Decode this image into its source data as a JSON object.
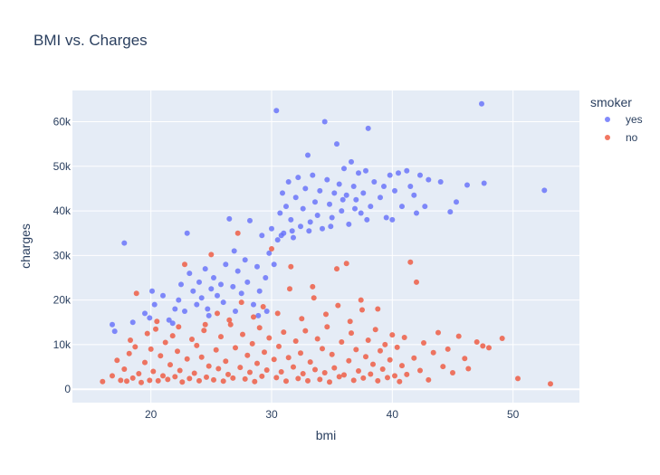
{
  "chart_data": {
    "type": "scatter",
    "title": "BMI vs. Charges",
    "xlabel": "bmi",
    "ylabel": "charges",
    "xlim": [
      13.5,
      55.5
    ],
    "ylim": [
      -3000,
      67000
    ],
    "x_ticks": [
      20,
      30,
      40,
      50
    ],
    "x_tick_labels": [
      "20",
      "30",
      "40",
      "50"
    ],
    "y_ticks": [
      0,
      10000,
      20000,
      30000,
      40000,
      50000,
      60000
    ],
    "y_tick_labels": [
      "0",
      "10k",
      "20k",
      "30k",
      "40k",
      "50k",
      "60k"
    ],
    "grid": true,
    "legend": {
      "title": "smoker",
      "placement": "top-right outside"
    },
    "series": [
      {
        "name": "yes",
        "color": "#636efa",
        "points": [
          [
            17.8,
            32800
          ],
          [
            16.8,
            14500
          ],
          [
            17.0,
            13000
          ],
          [
            18.5,
            15000
          ],
          [
            19.5,
            17000
          ],
          [
            19.9,
            16000
          ],
          [
            20.1,
            22000
          ],
          [
            20.3,
            19000
          ],
          [
            21.0,
            21000
          ],
          [
            21.5,
            15500
          ],
          [
            22.0,
            18000
          ],
          [
            22.3,
            20000
          ],
          [
            22.8,
            17500
          ],
          [
            23.0,
            35000
          ],
          [
            23.2,
            26000
          ],
          [
            23.5,
            22000
          ],
          [
            23.8,
            19000
          ],
          [
            24.0,
            24000
          ],
          [
            24.2,
            20500
          ],
          [
            24.5,
            27000
          ],
          [
            24.7,
            18000
          ],
          [
            25.0,
            22500
          ],
          [
            25.2,
            25000
          ],
          [
            25.5,
            21000
          ],
          [
            25.8,
            23500
          ],
          [
            26.0,
            19500
          ],
          [
            26.2,
            28000
          ],
          [
            26.5,
            38200
          ],
          [
            26.8,
            23000
          ],
          [
            27.0,
            17500
          ],
          [
            27.2,
            26500
          ],
          [
            27.5,
            21500
          ],
          [
            27.8,
            29000
          ],
          [
            28.0,
            24000
          ],
          [
            28.2,
            37800
          ],
          [
            28.5,
            19000
          ],
          [
            28.8,
            27500
          ],
          [
            29.0,
            22000
          ],
          [
            29.2,
            34500
          ],
          [
            29.5,
            25000
          ],
          [
            29.8,
            30500
          ],
          [
            30.0,
            36000
          ],
          [
            30.2,
            28000
          ],
          [
            30.4,
            62500
          ],
          [
            30.5,
            33500
          ],
          [
            30.7,
            39500
          ],
          [
            30.9,
            44000
          ],
          [
            31.0,
            35000
          ],
          [
            31.2,
            41000
          ],
          [
            31.4,
            46500
          ],
          [
            31.6,
            38000
          ],
          [
            31.8,
            34000
          ],
          [
            32.0,
            43000
          ],
          [
            32.2,
            47500
          ],
          [
            32.4,
            36500
          ],
          [
            32.6,
            40500
          ],
          [
            32.8,
            45000
          ],
          [
            33.0,
            52500
          ],
          [
            33.2,
            37500
          ],
          [
            33.4,
            48000
          ],
          [
            33.6,
            42000
          ],
          [
            33.8,
            39000
          ],
          [
            34.0,
            44500
          ],
          [
            34.2,
            36000
          ],
          [
            34.4,
            60000
          ],
          [
            34.6,
            47000
          ],
          [
            34.8,
            41500
          ],
          [
            35.0,
            38500
          ],
          [
            35.2,
            44000
          ],
          [
            35.4,
            55000
          ],
          [
            35.6,
            46000
          ],
          [
            35.8,
            40000
          ],
          [
            36.0,
            49500
          ],
          [
            36.2,
            43500
          ],
          [
            36.4,
            37000
          ],
          [
            36.6,
            51000
          ],
          [
            36.8,
            45500
          ],
          [
            37.0,
            42500
          ],
          [
            37.2,
            48500
          ],
          [
            37.4,
            39500
          ],
          [
            37.6,
            44000
          ],
          [
            37.8,
            49000
          ],
          [
            38.0,
            58500
          ],
          [
            38.2,
            41000
          ],
          [
            38.5,
            46500
          ],
          [
            39.0,
            43000
          ],
          [
            39.5,
            38500
          ],
          [
            39.8,
            48000
          ],
          [
            40.2,
            44500
          ],
          [
            40.5,
            48500
          ],
          [
            40.8,
            41000
          ],
          [
            41.2,
            49000
          ],
          [
            41.5,
            45500
          ],
          [
            41.8,
            43500
          ],
          [
            42.0,
            39500
          ],
          [
            42.3,
            48000
          ],
          [
            42.7,
            41000
          ],
          [
            43.0,
            47000
          ],
          [
            44.0,
            46500
          ],
          [
            44.8,
            39800
          ],
          [
            45.3,
            42000
          ],
          [
            46.2,
            45800
          ],
          [
            47.4,
            64000
          ],
          [
            47.6,
            46200
          ],
          [
            52.6,
            44600
          ],
          [
            21.8,
            14800
          ],
          [
            22.5,
            23500
          ],
          [
            24.8,
            16500
          ],
          [
            26.9,
            31000
          ],
          [
            28.9,
            16500
          ],
          [
            29.6,
            17500
          ],
          [
            30.8,
            34500
          ],
          [
            31.7,
            35500
          ],
          [
            33.1,
            35500
          ],
          [
            34.9,
            36500
          ],
          [
            35.9,
            42500
          ],
          [
            36.9,
            40500
          ],
          [
            37.9,
            38000
          ],
          [
            39.3,
            45500
          ],
          [
            40.0,
            38000
          ]
        ]
      },
      {
        "name": "no",
        "color": "#ef553b",
        "points": [
          [
            16.0,
            1700
          ],
          [
            16.8,
            3000
          ],
          [
            17.2,
            6500
          ],
          [
            17.5,
            2000
          ],
          [
            17.8,
            4500
          ],
          [
            18.0,
            1800
          ],
          [
            18.2,
            8000
          ],
          [
            18.3,
            11000
          ],
          [
            18.5,
            2500
          ],
          [
            18.7,
            9500
          ],
          [
            18.8,
            21500
          ],
          [
            19.0,
            3500
          ],
          [
            19.2,
            1500
          ],
          [
            19.5,
            6000
          ],
          [
            19.7,
            12500
          ],
          [
            19.9,
            2000
          ],
          [
            20.0,
            9000
          ],
          [
            20.2,
            4000
          ],
          [
            20.4,
            13500
          ],
          [
            20.6,
            1900
          ],
          [
            20.8,
            7500
          ],
          [
            21.0,
            3000
          ],
          [
            21.2,
            10500
          ],
          [
            21.4,
            2200
          ],
          [
            21.6,
            5500
          ],
          [
            21.8,
            12000
          ],
          [
            22.0,
            2800
          ],
          [
            22.2,
            8500
          ],
          [
            22.4,
            4200
          ],
          [
            22.6,
            1600
          ],
          [
            22.8,
            28000
          ],
          [
            23.0,
            6800
          ],
          [
            23.2,
            2400
          ],
          [
            23.4,
            11200
          ],
          [
            23.6,
            3600
          ],
          [
            23.8,
            9800
          ],
          [
            24.0,
            1900
          ],
          [
            24.2,
            7200
          ],
          [
            24.4,
            13200
          ],
          [
            24.6,
            2700
          ],
          [
            24.8,
            5200
          ],
          [
            25.0,
            30200
          ],
          [
            25.2,
            2100
          ],
          [
            25.4,
            8800
          ],
          [
            25.6,
            4600
          ],
          [
            25.8,
            11800
          ],
          [
            26.0,
            1800
          ],
          [
            26.2,
            6300
          ],
          [
            26.4,
            3300
          ],
          [
            26.6,
            14500
          ],
          [
            26.8,
            2500
          ],
          [
            27.0,
            9300
          ],
          [
            27.2,
            35000
          ],
          [
            27.4,
            4900
          ],
          [
            27.6,
            12300
          ],
          [
            27.8,
            2300
          ],
          [
            28.0,
            7600
          ],
          [
            28.2,
            3800
          ],
          [
            28.4,
            10200
          ],
          [
            28.6,
            1700
          ],
          [
            28.8,
            5800
          ],
          [
            29.0,
            13800
          ],
          [
            29.2,
            2900
          ],
          [
            29.4,
            8300
          ],
          [
            29.6,
            4300
          ],
          [
            29.8,
            11500
          ],
          [
            30.0,
            31500
          ],
          [
            30.2,
            6700
          ],
          [
            30.4,
            2600
          ],
          [
            30.6,
            9600
          ],
          [
            30.8,
            3900
          ],
          [
            31.0,
            12800
          ],
          [
            31.2,
            1800
          ],
          [
            31.4,
            7100
          ],
          [
            31.6,
            27500
          ],
          [
            31.8,
            5000
          ],
          [
            32.0,
            10800
          ],
          [
            32.2,
            2400
          ],
          [
            32.4,
            8100
          ],
          [
            32.6,
            3500
          ],
          [
            32.8,
            13100
          ],
          [
            33.0,
            1900
          ],
          [
            33.2,
            6100
          ],
          [
            33.4,
            23000
          ],
          [
            33.6,
            4400
          ],
          [
            33.8,
            11300
          ],
          [
            34.0,
            2200
          ],
          [
            34.2,
            9100
          ],
          [
            34.4,
            3700
          ],
          [
            34.6,
            14000
          ],
          [
            34.8,
            1600
          ],
          [
            35.0,
            7800
          ],
          [
            35.2,
            4800
          ],
          [
            35.4,
            27000
          ],
          [
            35.6,
            2800
          ],
          [
            35.8,
            10600
          ],
          [
            36.0,
            3200
          ],
          [
            36.2,
            28200
          ],
          [
            36.4,
            6400
          ],
          [
            36.6,
            12600
          ],
          [
            36.8,
            2000
          ],
          [
            37.0,
            8900
          ],
          [
            37.2,
            4100
          ],
          [
            37.4,
            20000
          ],
          [
            37.6,
            2500
          ],
          [
            37.8,
            7300
          ],
          [
            38.0,
            11000
          ],
          [
            38.2,
            3400
          ],
          [
            38.4,
            5600
          ],
          [
            38.6,
            13400
          ],
          [
            38.8,
            1900
          ],
          [
            39.0,
            8600
          ],
          [
            39.2,
            4500
          ],
          [
            39.4,
            10000
          ],
          [
            39.6,
            2600
          ],
          [
            39.8,
            6600
          ],
          [
            40.0,
            12200
          ],
          [
            40.2,
            3000
          ],
          [
            40.4,
            9400
          ],
          [
            40.6,
            1700
          ],
          [
            40.8,
            5300
          ],
          [
            41.0,
            11600
          ],
          [
            41.2,
            3300
          ],
          [
            41.5,
            28500
          ],
          [
            41.8,
            7000
          ],
          [
            42.0,
            24000
          ],
          [
            42.3,
            4200
          ],
          [
            42.6,
            10400
          ],
          [
            43.0,
            2100
          ],
          [
            43.4,
            8200
          ],
          [
            43.8,
            12700
          ],
          [
            44.2,
            5100
          ],
          [
            44.6,
            9000
          ],
          [
            45.0,
            3700
          ],
          [
            45.5,
            11900
          ],
          [
            46.0,
            6900
          ],
          [
            46.3,
            4600
          ],
          [
            47.0,
            10600
          ],
          [
            47.5,
            9700
          ],
          [
            48.0,
            9300
          ],
          [
            49.1,
            11400
          ],
          [
            50.4,
            2400
          ],
          [
            53.1,
            1200
          ],
          [
            25.5,
            17000
          ],
          [
            27.5,
            19500
          ],
          [
            29.3,
            18500
          ],
          [
            30.5,
            17000
          ],
          [
            31.5,
            22500
          ],
          [
            33.5,
            20500
          ],
          [
            35.5,
            18800
          ],
          [
            37.5,
            17800
          ],
          [
            38.8,
            18000
          ],
          [
            24.5,
            14500
          ],
          [
            26.5,
            15500
          ],
          [
            28.5,
            16200
          ],
          [
            32.5,
            15800
          ],
          [
            34.5,
            16800
          ],
          [
            36.5,
            15200
          ],
          [
            20.5,
            15200
          ],
          [
            22.3,
            14000
          ]
        ]
      }
    ]
  }
}
